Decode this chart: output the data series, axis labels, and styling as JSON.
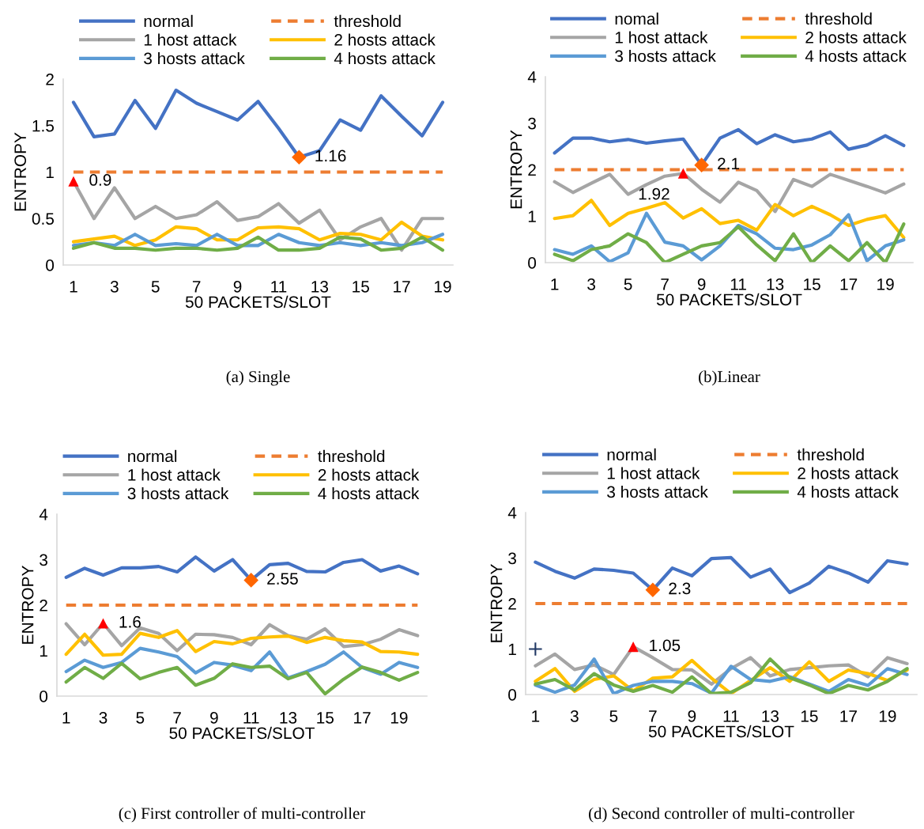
{
  "chart_data": [
    {
      "type": "line",
      "title": "(a) Single",
      "xlabel": "50 PACKETS/SLOT",
      "ylabel": "ENTROPY",
      "categories": [
        "1",
        null,
        "3",
        null,
        "5",
        null,
        "7",
        null,
        "9",
        null,
        "11",
        null,
        "13",
        null,
        "15",
        null,
        "17",
        null,
        "19"
      ],
      "ylim": [
        0,
        2
      ],
      "yticks": [
        0,
        {
          "value": 0.5,
          "label": "0.5"
        },
        1,
        {
          "value": 1.5,
          "label": "1.5"
        },
        2
      ],
      "legend": "top",
      "grid": false,
      "series": [
        {
          "name": "normal",
          "color": "#4472c4",
          "values": [
            1.75,
            1.38,
            1.41,
            1.77,
            1.47,
            1.88,
            1.74,
            1.65,
            1.56,
            1.76,
            1.47,
            1.16,
            1.23,
            1.56,
            1.45,
            1.82,
            1.6,
            1.39,
            1.75
          ]
        },
        {
          "name": "threshold",
          "color": "#ed7d31",
          "line_style": "dashed",
          "values": [
            1,
            1,
            1,
            1,
            1,
            1,
            1,
            1,
            1,
            1,
            1,
            1,
            1,
            1,
            1,
            1,
            1,
            1,
            1
          ]
        },
        {
          "name": "1 host attack",
          "color": "#a5a5a5",
          "values": [
            0.9,
            0.5,
            0.83,
            0.5,
            0.63,
            0.5,
            0.54,
            0.68,
            0.48,
            0.52,
            0.66,
            0.45,
            0.59,
            0.27,
            0.41,
            0.5,
            0.16,
            0.5,
            0.5
          ]
        },
        {
          "name": "2 hosts attack",
          "color": "#ffc000",
          "values": [
            0.25,
            0.28,
            0.31,
            0.21,
            0.27,
            0.41,
            0.39,
            0.27,
            0.27,
            0.4,
            0.41,
            0.39,
            0.27,
            0.34,
            0.33,
            0.27,
            0.46,
            0.31,
            0.27
          ]
        },
        {
          "name": "3 hosts attack",
          "color": "#5b9bd5",
          "values": [
            0.21,
            0.24,
            0.21,
            0.33,
            0.21,
            0.23,
            0.21,
            0.33,
            0.21,
            0.21,
            0.33,
            0.24,
            0.21,
            0.24,
            0.21,
            0.24,
            0.21,
            0.24,
            0.33
          ]
        },
        {
          "name": "4 hosts attack",
          "color": "#70ad47",
          "values": [
            0.18,
            0.24,
            0.18,
            0.18,
            0.16,
            0.18,
            0.18,
            0.16,
            0.18,
            0.3,
            0.16,
            0.16,
            0.18,
            0.3,
            0.28,
            0.16,
            0.18,
            0.3,
            0.16
          ]
        },
        {
          "type": "scatter",
          "marker": "triangle",
          "color": "#ff0000",
          "values": [
            0.9,
            null,
            null,
            null,
            null,
            null,
            null,
            null,
            null,
            null,
            null,
            null,
            null,
            null,
            null,
            null,
            null,
            null,
            null
          ],
          "value_labels": [
            "0.9",
            null,
            null,
            null,
            null,
            null,
            null,
            null,
            null,
            null,
            null,
            null,
            null,
            null,
            null,
            null,
            null,
            null,
            null
          ]
        },
        {
          "type": "scatter",
          "marker": "diamond",
          "color": "#ff6600",
          "values": [
            null,
            null,
            null,
            null,
            null,
            null,
            null,
            null,
            null,
            null,
            null,
            1.16,
            null,
            null,
            null,
            null,
            null,
            null,
            null
          ],
          "value_labels": [
            null,
            null,
            null,
            null,
            null,
            null,
            null,
            null,
            null,
            null,
            null,
            "1.16",
            null,
            null,
            null,
            null,
            null,
            null,
            null
          ]
        }
      ]
    },
    {
      "type": "line",
      "title": "(b)Linear",
      "xlabel": "50 PACKETS/SLOT",
      "ylabel": "ENTROPY",
      "categories": [
        "1",
        null,
        "3",
        null,
        "5",
        null,
        "7",
        null,
        "9",
        null,
        "11",
        null,
        "13",
        null,
        "15",
        null,
        "17",
        null,
        "19",
        null
      ],
      "ylim": [
        0,
        4
      ],
      "yticks": [
        0,
        1,
        2,
        3,
        4
      ],
      "legend": "top",
      "grid": false,
      "series": [
        {
          "name": "nomal",
          "color": "#4472c4",
          "values": [
            2.36,
            2.68,
            2.68,
            2.6,
            2.65,
            2.57,
            2.62,
            2.66,
            2.1,
            2.68,
            2.86,
            2.56,
            2.75,
            2.6,
            2.66,
            2.81,
            2.44,
            2.53,
            2.73,
            2.52
          ]
        },
        {
          "name": "threshold",
          "color": "#ed7d31",
          "line_style": "dashed",
          "values": [
            2,
            2,
            2,
            2,
            2,
            2,
            2,
            2,
            2,
            2,
            2,
            2,
            2,
            2,
            2,
            2,
            2,
            2,
            2,
            2
          ]
        },
        {
          "name": "1 host attack",
          "color": "#a5a5a5",
          "values": [
            1.74,
            1.51,
            1.71,
            1.9,
            1.47,
            1.68,
            1.86,
            1.92,
            1.58,
            1.3,
            1.73,
            1.55,
            1.1,
            1.79,
            1.64,
            1.9,
            1.77,
            1.64,
            1.5,
            1.69
          ]
        },
        {
          "name": "2 hosts attack",
          "color": "#ffc000",
          "values": [
            0.95,
            1.01,
            1.34,
            0.8,
            1.06,
            1.17,
            1.29,
            0.96,
            1.16,
            0.84,
            0.91,
            0.7,
            1.25,
            1.01,
            1.21,
            1.03,
            0.8,
            0.93,
            1.01,
            0.54
          ]
        },
        {
          "name": "3 hosts attack",
          "color": "#5b9bd5",
          "values": [
            0.28,
            0.18,
            0.36,
            0.02,
            0.21,
            1.06,
            0.44,
            0.36,
            0.06,
            0.36,
            0.8,
            0.62,
            0.31,
            0.28,
            0.38,
            0.6,
            1.03,
            0.04,
            0.36,
            0.49
          ]
        },
        {
          "name": "4 hosts attack",
          "color": "#70ad47",
          "values": [
            0.18,
            0.04,
            0.28,
            0.36,
            0.62,
            0.43,
            0,
            0.18,
            0.36,
            0.43,
            0.77,
            0.38,
            0.04,
            0.62,
            0,
            0.36,
            0.04,
            0.43,
            0,
            0.83
          ]
        },
        {
          "type": "scatter",
          "marker": "triangle",
          "color": "#ff0000",
          "values": [
            null,
            null,
            null,
            null,
            null,
            null,
            null,
            1.92,
            null,
            null,
            null,
            null,
            null,
            null,
            null,
            null,
            null,
            null,
            null,
            null
          ],
          "value_labels": [
            null,
            null,
            null,
            null,
            null,
            null,
            null,
            "1.92",
            null,
            null,
            null,
            null,
            null,
            null,
            null,
            null,
            null,
            null,
            null,
            null
          ]
        },
        {
          "type": "scatter",
          "marker": "diamond",
          "color": "#ff6600",
          "values": [
            null,
            null,
            null,
            null,
            null,
            null,
            null,
            null,
            2.1,
            null,
            null,
            null,
            null,
            null,
            null,
            null,
            null,
            null,
            null,
            null
          ],
          "value_labels": [
            null,
            null,
            null,
            null,
            null,
            null,
            null,
            null,
            "2.1",
            null,
            null,
            null,
            null,
            null,
            null,
            null,
            null,
            null,
            null,
            null
          ]
        }
      ]
    },
    {
      "type": "line",
      "title": "(c) First controller of multi-controller",
      "xlabel": "50 PACKETS/SLOT",
      "ylabel": "ENTROPY",
      "categories": [
        "1",
        null,
        "3",
        null,
        "5",
        null,
        "7",
        null,
        "9",
        null,
        "11",
        null,
        "13",
        null,
        "15",
        null,
        "17",
        null,
        "19",
        null
      ],
      "ylim": [
        0,
        4
      ],
      "yticks": [
        0,
        1,
        2,
        3,
        4
      ],
      "legend": "top",
      "grid": false,
      "series": [
        {
          "name": "normal",
          "color": "#4472c4",
          "values": [
            2.61,
            2.81,
            2.66,
            2.82,
            2.82,
            2.85,
            2.73,
            3.06,
            2.75,
            3.0,
            2.55,
            2.89,
            2.92,
            2.74,
            2.73,
            2.94,
            3.0,
            2.75,
            2.86,
            2.69
          ]
        },
        {
          "name": "threshold",
          "color": "#ed7d31",
          "line_style": "dashed",
          "values": [
            2,
            2,
            2,
            2,
            2,
            2,
            2,
            2,
            2,
            2,
            2,
            2,
            2,
            2,
            2,
            2,
            2,
            2,
            2,
            2
          ]
        },
        {
          "name": "1 host attack",
          "color": "#a5a5a5",
          "values": [
            1.59,
            1.13,
            1.6,
            1.11,
            1.5,
            1.38,
            1.0,
            1.36,
            1.35,
            1.29,
            1.13,
            1.57,
            1.33,
            1.25,
            1.48,
            1.09,
            1.13,
            1.25,
            1.46,
            1.33
          ]
        },
        {
          "name": "2 hosts attack",
          "color": "#ffc000",
          "values": [
            0.92,
            1.36,
            0.9,
            0.92,
            1.38,
            1.29,
            1.44,
            0.98,
            1.2,
            1.15,
            1.27,
            1.3,
            1.32,
            1.18,
            1.29,
            1.22,
            1.19,
            0.98,
            0.97,
            0.92
          ]
        },
        {
          "name": "3 hosts attack",
          "color": "#5b9bd5",
          "values": [
            0.54,
            0.79,
            0.63,
            0.74,
            1.05,
            0.97,
            0.87,
            0.51,
            0.74,
            0.68,
            0.56,
            0.97,
            0.4,
            0.54,
            0.7,
            0.97,
            0.63,
            0.48,
            0.74,
            0.63
          ]
        },
        {
          "name": "4 hosts attack",
          "color": "#70ad47",
          "values": [
            0.31,
            0.63,
            0.39,
            0.72,
            0.38,
            0.52,
            0.63,
            0.24,
            0.39,
            0.71,
            0.63,
            0.66,
            0.38,
            0.52,
            0.05,
            0.37,
            0.64,
            0.52,
            0.35,
            0.52
          ]
        },
        {
          "type": "scatter",
          "marker": "triangle",
          "color": "#ff0000",
          "values": [
            null,
            null,
            1.6,
            null,
            null,
            null,
            null,
            null,
            null,
            null,
            null,
            null,
            null,
            null,
            null,
            null,
            null,
            null,
            null,
            null
          ],
          "value_labels": [
            null,
            null,
            "1.6",
            null,
            null,
            null,
            null,
            null,
            null,
            null,
            null,
            null,
            null,
            null,
            null,
            null,
            null,
            null,
            null,
            null
          ]
        },
        {
          "type": "scatter",
          "marker": "diamond",
          "color": "#ff6600",
          "values": [
            null,
            null,
            null,
            null,
            null,
            null,
            null,
            null,
            null,
            null,
            2.55,
            null,
            null,
            null,
            null,
            null,
            null,
            null,
            null,
            null
          ],
          "value_labels": [
            null,
            null,
            null,
            null,
            null,
            null,
            null,
            null,
            null,
            null,
            "2.55",
            null,
            null,
            null,
            null,
            null,
            null,
            null,
            null,
            null
          ]
        }
      ]
    },
    {
      "type": "line",
      "title": "(d) Second controller of multi-controller",
      "xlabel": "50 PACKETS/SLOT",
      "ylabel": "ENTROPY",
      "categories": [
        "1",
        null,
        "3",
        null,
        "5",
        null,
        "7",
        null,
        "9",
        null,
        "11",
        null,
        "13",
        null,
        "15",
        null,
        "17",
        null,
        "19",
        null
      ],
      "ylim": [
        0,
        4
      ],
      "yticks": [
        0,
        1,
        2,
        3,
        4
      ],
      "legend": "top",
      "grid": false,
      "series": [
        {
          "name": "normal",
          "color": "#4472c4",
          "values": [
            2.91,
            2.71,
            2.56,
            2.76,
            2.73,
            2.67,
            2.3,
            2.78,
            2.61,
            2.99,
            3.01,
            2.58,
            2.76,
            2.24,
            2.45,
            2.82,
            2.67,
            2.47,
            2.94,
            2.87
          ]
        },
        {
          "name": "threshold",
          "color": "#ed7d31",
          "line_style": "dashed",
          "values": [
            2,
            2,
            2,
            2,
            2,
            2,
            2,
            2,
            2,
            2,
            2,
            2,
            2,
            2,
            2,
            2,
            2,
            2,
            2,
            2
          ]
        },
        {
          "name": "1 host attack",
          "color": "#a5a5a5",
          "values": [
            0.63,
            0.89,
            0.55,
            0.65,
            0.44,
            1.05,
            0.81,
            0.55,
            0.54,
            0.23,
            0.57,
            0.81,
            0.41,
            0.55,
            0.59,
            0.63,
            0.65,
            0.39,
            0.81,
            0.68
          ]
        },
        {
          "name": "2 hosts attack",
          "color": "#ffc000",
          "values": [
            0.29,
            0.57,
            0.07,
            0.33,
            0.41,
            0.08,
            0.36,
            0.39,
            0.75,
            0.36,
            0.02,
            0.31,
            0.59,
            0.29,
            0.72,
            0.29,
            0.54,
            0.46,
            0.31,
            0.54
          ]
        },
        {
          "name": "3 hosts attack",
          "color": "#5b9bd5",
          "values": [
            0.21,
            0.05,
            0.21,
            0.78,
            0.02,
            0.2,
            0.29,
            0.29,
            0.24,
            0.03,
            0.62,
            0.33,
            0.29,
            0.39,
            0.23,
            0.07,
            0.33,
            0.2,
            0.57,
            0.44
          ]
        },
        {
          "name": "4 hosts attack",
          "color": "#70ad47",
          "values": [
            0.23,
            0.33,
            0.1,
            0.46,
            0.21,
            0.07,
            0.2,
            0.05,
            0.39,
            0.02,
            0.05,
            0.26,
            0.78,
            0.37,
            0.21,
            0.02,
            0.2,
            0.1,
            0.29,
            0.57
          ]
        },
        {
          "type": "scatter",
          "marker": "triangle",
          "color": "#ff0000",
          "values": [
            null,
            null,
            null,
            null,
            null,
            1.05,
            null,
            null,
            null,
            null,
            null,
            null,
            null,
            null,
            null,
            null,
            null,
            null,
            null,
            null
          ],
          "value_labels": [
            null,
            null,
            null,
            null,
            null,
            "1.05",
            null,
            null,
            null,
            null,
            null,
            null,
            null,
            null,
            null,
            null,
            null,
            null,
            null,
            null
          ]
        },
        {
          "type": "scatter",
          "marker": "diamond",
          "color": "#ff6600",
          "values": [
            null,
            null,
            null,
            null,
            null,
            null,
            2.3,
            null,
            null,
            null,
            null,
            null,
            null,
            null,
            null,
            null,
            null,
            null,
            null,
            null
          ],
          "value_labels": [
            null,
            null,
            null,
            null,
            null,
            null,
            "2.3",
            null,
            null,
            null,
            null,
            null,
            null,
            null,
            null,
            null,
            null,
            null,
            null,
            null
          ]
        },
        {
          "type": "scatter",
          "marker": "cross",
          "color": "#203864",
          "values": [
            1,
            null,
            null,
            null,
            null,
            null,
            null,
            null,
            null,
            null,
            null,
            null,
            null,
            null,
            null,
            null,
            null,
            null,
            null,
            null
          ]
        }
      ]
    }
  ]
}
